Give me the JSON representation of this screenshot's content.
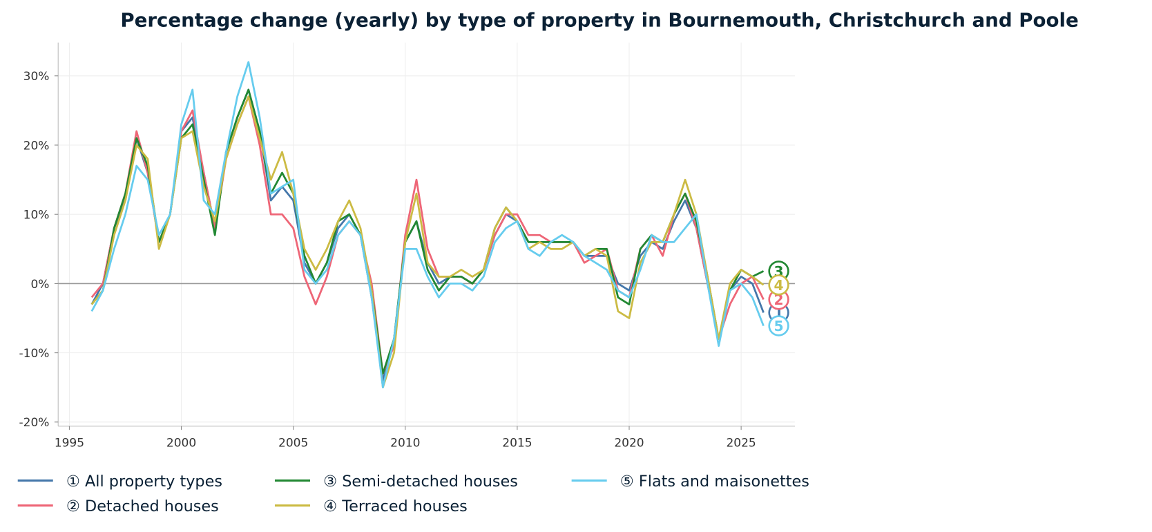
{
  "chart_data": {
    "type": "line",
    "title": "Percentage change (yearly) by type of property in Bournemouth, Christchurch and Poole",
    "xlabel": "",
    "ylabel": "",
    "xlim": [
      1994.5,
      2027.4
    ],
    "ylim": [
      -20.6,
      34.8
    ],
    "x_ticks": [
      "1995",
      "2000",
      "2005",
      "2010",
      "2015",
      "2020",
      "2025"
    ],
    "y_ticks": [
      "30%",
      "20%",
      "10%",
      "0%",
      "-10%",
      "-20%"
    ],
    "grid": true,
    "legend_position": "bottom",
    "x_start": 1996.0,
    "x_step_years": 0.5,
    "series": [
      {
        "name": "① All property types",
        "end_label": "1",
        "color": "#4477aa",
        "values": [
          -3,
          0,
          8,
          12,
          21,
          16,
          6,
          10,
          22,
          24,
          16,
          8,
          19,
          24,
          28,
          22,
          12,
          14,
          12,
          3,
          0,
          3,
          8,
          10,
          7,
          -2,
          -14,
          -8,
          6,
          9,
          3,
          0,
          1,
          1,
          0,
          2,
          7,
          10,
          9,
          6,
          6,
          6,
          6,
          6,
          4,
          4,
          4,
          0,
          -1,
          4,
          6,
          5,
          9,
          12,
          8,
          0,
          -8,
          -1,
          1,
          0,
          -4.2
        ]
      },
      {
        "name": "② Detached houses",
        "end_label": "2",
        "color": "#ee6677",
        "values": [
          -2,
          0,
          8,
          13,
          22,
          16,
          6,
          10,
          22,
          25,
          16,
          8,
          18,
          23,
          27,
          20,
          10,
          10,
          8,
          1,
          -3,
          1,
          7,
          9,
          7,
          0,
          -13,
          -9,
          7,
          15,
          5,
          1,
          1,
          1,
          0,
          2,
          7,
          10,
          10,
          7,
          7,
          6,
          6,
          6,
          3,
          4,
          5,
          -1,
          -2,
          5,
          7,
          4,
          10,
          13,
          8,
          0,
          -8,
          -3,
          0,
          1,
          -2.3
        ]
      },
      {
        "name": "③ Semi-detached houses",
        "end_label": "3",
        "color": "#228833",
        "values": [
          -3,
          -1,
          8,
          13,
          21,
          17,
          6,
          10,
          21,
          23,
          15,
          7,
          19,
          24,
          28,
          22,
          13,
          16,
          13,
          4,
          0,
          3,
          9,
          10,
          7,
          -1,
          -13,
          -8,
          6,
          9,
          2,
          -1,
          1,
          1,
          0,
          2,
          8,
          11,
          9,
          6,
          6,
          6,
          6,
          6,
          4,
          5,
          5,
          -2,
          -3,
          5,
          7,
          6,
          10,
          13,
          9,
          1,
          -8,
          -1,
          2,
          1,
          1.8
        ]
      },
      {
        "name": "④ Terraced houses",
        "end_label": "4",
        "color": "#ccbb44",
        "values": [
          -3,
          -1,
          7,
          12,
          20,
          18,
          5,
          10,
          21,
          22,
          14,
          9,
          18,
          23,
          27,
          21,
          15,
          19,
          13,
          5,
          2,
          5,
          9,
          12,
          8,
          -1,
          -15,
          -10,
          6,
          13,
          3,
          1,
          1,
          2,
          1,
          2,
          8,
          11,
          9,
          5,
          6,
          5,
          5,
          6,
          4,
          5,
          4,
          -4,
          -5,
          3,
          6,
          6,
          10,
          15,
          10,
          1,
          -8,
          0,
          2,
          1,
          -0.2
        ]
      },
      {
        "name": "⑤ Flats and maisonettes",
        "end_label": "5",
        "color": "#66ccee",
        "values": [
          -4,
          -1,
          5,
          10,
          17,
          15,
          7,
          10,
          23,
          28,
          12,
          10,
          19,
          27,
          32,
          24,
          13,
          14,
          15,
          2,
          0,
          2,
          7,
          9,
          7,
          -2,
          -15,
          -8,
          5,
          5,
          1,
          -2,
          0,
          0,
          -1,
          1,
          6,
          8,
          9,
          5,
          4,
          6,
          7,
          6,
          4,
          3,
          2,
          -1,
          -2,
          2,
          7,
          6,
          6,
          8,
          10,
          0,
          -9,
          -1,
          0,
          -2,
          -6.1
        ]
      }
    ]
  }
}
